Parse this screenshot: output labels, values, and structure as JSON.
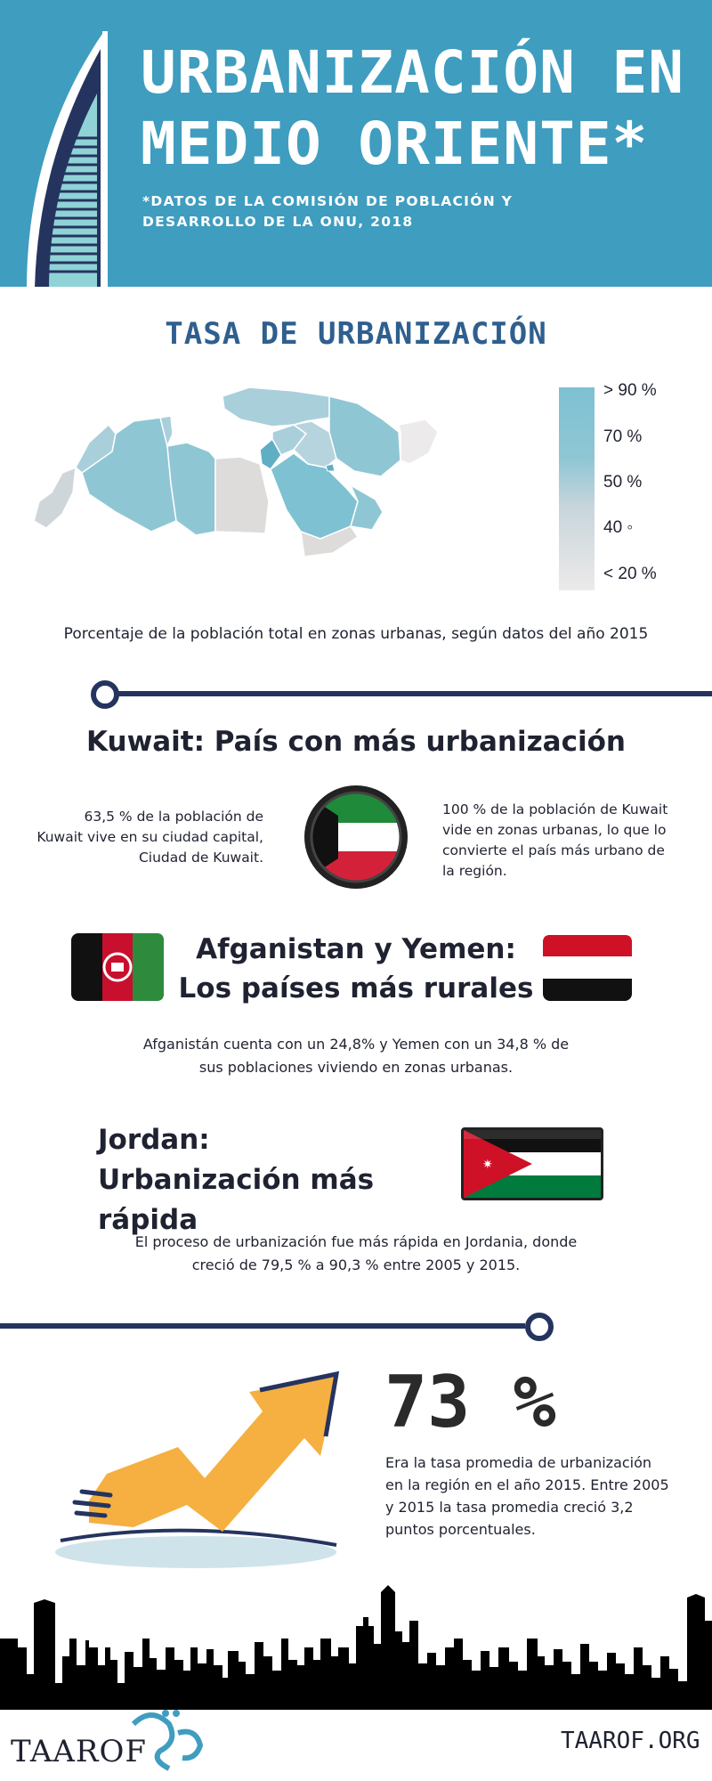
{
  "header": {
    "title": "URBANIZACIÓN EN MEDIO ORIENTE*",
    "subtitle": "*DATOS DE LA COMISIÓN DE POBLACIÓN Y DESARROLLO DE LA ONU, 2018",
    "background_color": "#3f9dbf"
  },
  "urbanization_map": {
    "title": "TASA DE URBANIZACIÓN",
    "legend": [
      "> 90 %",
      "70 %",
      "50 %",
      "40 ◦",
      "< 20 %"
    ],
    "caption": "Porcentaje de la población total en zonas urbanas, según datos del año 2015"
  },
  "kuwait": {
    "title": "Kuwait: País con más urbanización",
    "left_text": "63,5 % de la población de Kuwait vive en su ciudad capital, Ciudad de Kuwait.",
    "right_text": "100 % de la población de Kuwait vide en zonas urbanas, lo que lo convierte el país más urbano de la región."
  },
  "afghanistan_yemen": {
    "title_line1": "Afganistan y Yemen:",
    "title_line2": "Los países más rurales",
    "caption": "Afganistán cuenta con un 24,8% y Yemen con  un 34,8 % de sus poblaciones viviendo en zonas urbanas."
  },
  "jordan": {
    "title_line1": "Jordan:",
    "title_line2": "Urbanización más rápida",
    "caption": "El proceso de urbanización fue más rápida en Jordania, donde creció de 79,5 % a 90,3 % entre 2005 y 2015."
  },
  "average": {
    "value": "73 %",
    "text": "Era la tasa promedia de urbanización en la región en el año 2015.  Entre 2005 y 2015 la tasa promedia creció 3,2 puntos porcentuales."
  },
  "footer": {
    "logo_text": "TAAROF",
    "url": "TAAROF.ORG"
  }
}
